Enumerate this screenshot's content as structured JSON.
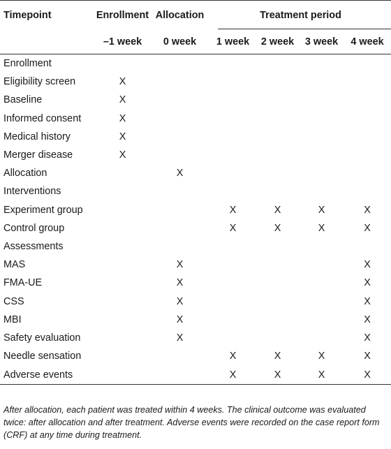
{
  "header": {
    "timepoint": "Timepoint",
    "enrollment": "Enrollment",
    "allocation": "Allocation",
    "treatment_period": "Treatment period",
    "sub": [
      "–1 week",
      "0 week",
      "1 week",
      "2 week",
      "3 week",
      "4 week"
    ]
  },
  "rows": [
    {
      "label": "Enrollment",
      "cells": [
        "",
        "",
        "",
        "",
        "",
        ""
      ]
    },
    {
      "label": "Eligibility screen",
      "cells": [
        "X",
        "",
        "",
        "",
        "",
        ""
      ]
    },
    {
      "label": "Baseline",
      "cells": [
        "X",
        "",
        "",
        "",
        "",
        ""
      ]
    },
    {
      "label": "Informed consent",
      "cells": [
        "X",
        "",
        "",
        "",
        "",
        ""
      ]
    },
    {
      "label": "Medical history",
      "cells": [
        "X",
        "",
        "",
        "",
        "",
        ""
      ]
    },
    {
      "label": "Merger disease",
      "cells": [
        "X",
        "",
        "",
        "",
        "",
        ""
      ]
    },
    {
      "label": "Allocation",
      "cells": [
        "",
        "X",
        "",
        "",
        "",
        ""
      ]
    },
    {
      "label": "Interventions",
      "cells": [
        "",
        "",
        "",
        "",
        "",
        ""
      ]
    },
    {
      "label": "Experiment group",
      "cells": [
        "",
        "",
        "X",
        "X",
        "X",
        "X"
      ]
    },
    {
      "label": "Control group",
      "cells": [
        "",
        "",
        "X",
        "X",
        "X",
        "X"
      ]
    },
    {
      "label": "Assessments",
      "cells": [
        "",
        "",
        "",
        "",
        "",
        ""
      ]
    },
    {
      "label": "MAS",
      "cells": [
        "",
        "X",
        "",
        "",
        "",
        "X"
      ]
    },
    {
      "label": "FMA-UE",
      "cells": [
        "",
        "X",
        "",
        "",
        "",
        "X"
      ]
    },
    {
      "label": "CSS",
      "cells": [
        "",
        "X",
        "",
        "",
        "",
        "X"
      ]
    },
    {
      "label": "MBI",
      "cells": [
        "",
        "X",
        "",
        "",
        "",
        "X"
      ]
    },
    {
      "label": "Safety evaluation",
      "cells": [
        "",
        "X",
        "",
        "",
        "",
        "X"
      ]
    },
    {
      "label": "Needle sensation",
      "cells": [
        "",
        "",
        "X",
        "X",
        "X",
        "X"
      ]
    },
    {
      "label": "Adverse events",
      "cells": [
        "",
        "",
        "X",
        "X",
        "X",
        "X"
      ]
    }
  ],
  "footnote": "After allocation, each patient was treated within 4 weeks. The clinical outcome was evaluated twice: after allocation and after treatment. Adverse events were recorded on the case report form (CRF) at any time during treatment."
}
